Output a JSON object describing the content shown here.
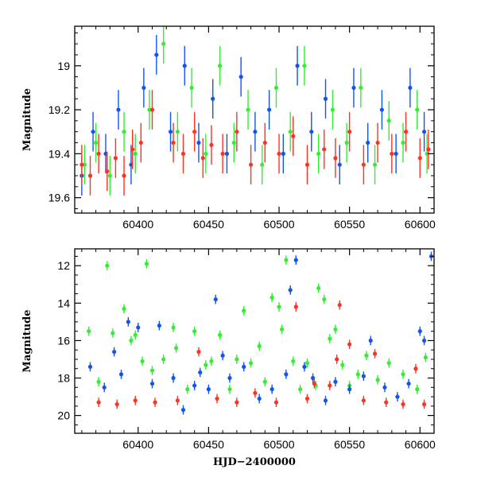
{
  "chart_data": [
    {
      "type": "scatter",
      "title": "",
      "xlabel": "",
      "ylabel": "Magnitude",
      "xlim": [
        60355,
        60610
      ],
      "ylim": [
        19.67,
        18.82
      ],
      "y_inverted": true,
      "xticks": [
        60400,
        60450,
        60500,
        60550,
        60600
      ],
      "xtick_labels": [
        "60400",
        "60450",
        "60500",
        "60550",
        "60600"
      ],
      "yticks": [
        19,
        19.2,
        19.4,
        19.6
      ],
      "ytick_labels": [
        "19",
        "19.2",
        "19.4",
        "19.6"
      ],
      "grid": false,
      "legend": "none",
      "series": [
        {
          "color": "#33ee33",
          "x": [
            60362,
            60370,
            60380,
            60390,
            60398,
            60408,
            60418,
            60428,
            60438,
            60448,
            60458,
            60468,
            60478,
            60488,
            60498,
            60508,
            60518,
            60528,
            60538,
            60548,
            60558,
            60568,
            60578,
            60588,
            60598,
            60605
          ],
          "y": [
            19.45,
            19.35,
            19.5,
            19.3,
            19.4,
            19.2,
            18.9,
            19.3,
            19.1,
            19.4,
            19.0,
            19.35,
            19.2,
            19.45,
            19.1,
            19.3,
            19.0,
            19.4,
            19.2,
            19.35,
            19.1,
            19.45,
            19.25,
            19.35,
            19.2,
            19.4
          ]
        },
        {
          "color": "#1155ee",
          "x": [
            60360,
            60368,
            60377,
            60386,
            60395,
            60404,
            60413,
            60423,
            60433,
            60443,
            60453,
            60463,
            60473,
            60483,
            60493,
            60503,
            60513,
            60523,
            60533,
            60543,
            60553,
            60563,
            60573,
            60583,
            60593,
            60603
          ],
          "y": [
            19.5,
            19.3,
            19.4,
            19.2,
            19.45,
            19.1,
            18.95,
            19.3,
            19.0,
            19.35,
            19.15,
            19.4,
            19.05,
            19.3,
            19.2,
            19.4,
            19.0,
            19.3,
            19.15,
            19.45,
            19.1,
            19.35,
            19.2,
            19.4,
            19.1,
            19.3
          ]
        },
        {
          "color": "#ff3322",
          "x": [
            60360,
            60366,
            60372,
            60378,
            60384,
            60390,
            60396,
            60402,
            60410,
            60425,
            60432,
            60440,
            60446,
            60452,
            60460,
            60470,
            60480,
            60490,
            60500,
            60510,
            60520,
            60532,
            60540,
            60550,
            60560,
            60570,
            60580,
            60590,
            60600,
            60606
          ],
          "y": [
            19.45,
            19.5,
            19.4,
            19.48,
            19.42,
            19.5,
            19.38,
            19.35,
            19.2,
            19.35,
            19.4,
            19.3,
            19.42,
            19.36,
            19.4,
            19.3,
            19.45,
            19.35,
            19.4,
            19.32,
            19.45,
            19.38,
            19.42,
            19.3,
            19.45,
            19.35,
            19.4,
            19.3,
            19.42,
            19.38
          ]
        }
      ]
    },
    {
      "type": "scatter",
      "title": "",
      "xlabel": "HJD−2400000",
      "ylabel": "Magnitude",
      "xlim": [
        60355,
        60610
      ],
      "ylim": [
        20.95,
        11.1
      ],
      "y_inverted": true,
      "xticks": [
        60400,
        60450,
        60500,
        60550,
        60600
      ],
      "xtick_labels": [
        "60400",
        "60450",
        "60500",
        "60550",
        "60600"
      ],
      "yticks": [
        12,
        14,
        16,
        18,
        20
      ],
      "ytick_labels": [
        "12",
        "14",
        "16",
        "18",
        "20"
      ],
      "grid": false,
      "legend": "none",
      "series": [
        {
          "color": "#33ee33",
          "x": [
            60365,
            60372,
            60378,
            60382,
            60390,
            60395,
            60398,
            60403,
            60406,
            60410,
            60418,
            60425,
            60427,
            60435,
            60440,
            60448,
            60452,
            60458,
            60465,
            60470,
            60475,
            60480,
            60486,
            60490,
            60495,
            60500,
            60502,
            60505,
            60510,
            60515,
            60520,
            60526,
            60528,
            60532,
            60536,
            60540,
            60545,
            60550,
            60556,
            60562,
            60570,
            60578,
            60588,
            60598,
            60604
          ],
          "y": [
            15.5,
            18.2,
            12.0,
            15.6,
            14.3,
            16.0,
            15.7,
            17.1,
            11.9,
            17.6,
            17.0,
            15.3,
            16.4,
            18.6,
            15.5,
            17.3,
            17.1,
            15.7,
            18.6,
            17.0,
            14.4,
            17.2,
            16.3,
            18.2,
            13.7,
            14.2,
            15.4,
            11.7,
            17.1,
            18.6,
            17.2,
            18.4,
            13.2,
            13.8,
            15.9,
            15.4,
            17.3,
            18.4,
            17.8,
            16.8,
            18.1,
            17.2,
            17.8,
            18.6,
            16.9
          ]
        },
        {
          "color": "#1155ee",
          "x": [
            60366,
            60376,
            60383,
            60388,
            60393,
            60400,
            60410,
            60415,
            60425,
            60432,
            60440,
            60444,
            60450,
            60455,
            60460,
            60465,
            60475,
            60486,
            60495,
            60505,
            60508,
            60512,
            60518,
            60524,
            60533,
            60540,
            60550,
            60560,
            60565,
            60575,
            60584,
            60592,
            60600,
            60603,
            60608
          ],
          "y": [
            17.4,
            18.5,
            16.6,
            17.8,
            15.0,
            15.3,
            18.3,
            15.2,
            18.0,
            19.7,
            18.4,
            17.7,
            18.6,
            13.8,
            16.8,
            18.0,
            17.4,
            19.1,
            18.6,
            17.8,
            13.3,
            11.7,
            17.4,
            18.0,
            19.2,
            18.2,
            18.6,
            17.9,
            16.0,
            18.5,
            19.0,
            18.3,
            15.5,
            16.0,
            11.5
          ]
        },
        {
          "color": "#ff3322",
          "x": [
            60372,
            60385,
            60398,
            60412,
            60428,
            60443,
            60456,
            60470,
            60483,
            60498,
            60512,
            60520,
            60525,
            60536,
            60541,
            60543,
            60550,
            60560,
            60568,
            60576,
            60588,
            60597,
            60603
          ],
          "y": [
            19.3,
            19.4,
            19.2,
            19.3,
            19.2,
            16.6,
            19.1,
            19.3,
            18.8,
            19.3,
            14.2,
            19.1,
            18.3,
            18.4,
            17.0,
            14.1,
            16.2,
            19.2,
            16.7,
            19.3,
            19.4,
            17.5,
            19.4
          ]
        }
      ]
    }
  ]
}
